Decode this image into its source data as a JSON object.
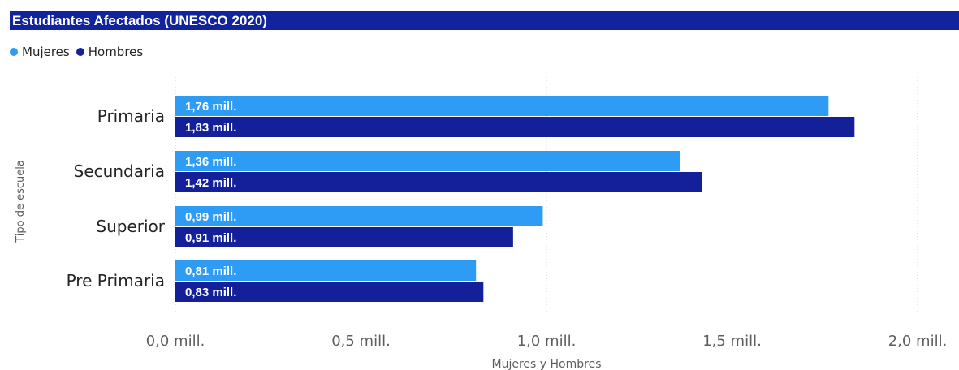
{
  "title": "Estudiantes Afectados (UNESCO 2020)",
  "colors": {
    "title_bar": "#12239e",
    "mujeres": "#2e9bf5",
    "hombres": "#141f9a",
    "grid": "#c8c8c8",
    "text": "#252423",
    "axis_text": "#605e5c"
  },
  "chart_data": {
    "type": "bar",
    "orientation": "horizontal",
    "categories": [
      "Primaria",
      "Secundaria",
      "Superior",
      "Pre Primaria"
    ],
    "series": [
      {
        "name": "Mujeres",
        "values": [
          1.76,
          1.36,
          0.99,
          0.81
        ],
        "labels": [
          "1,76 mill.",
          "1,36 mill.",
          "0,99 mill.",
          "0,81 mill."
        ]
      },
      {
        "name": "Hombres",
        "values": [
          1.83,
          1.42,
          0.91,
          0.83
        ],
        "labels": [
          "1,83 mill.",
          "1,42 mill.",
          "0,91 mill.",
          "0,83 mill."
        ]
      }
    ],
    "xlabel": "Mujeres y Hombres",
    "ylabel": "Tipo de escuela",
    "xlim": [
      0,
      2.0
    ],
    "xticks": [
      0,
      0.5,
      1.0,
      1.5,
      2.0
    ],
    "xtick_labels": [
      "0,0 mill.",
      "0,5 mill.",
      "1,0 mill.",
      "1,5 mill.",
      "2,0 mill."
    ],
    "grid": true,
    "grid_style": "dotted",
    "legend_position": "top-left"
  }
}
